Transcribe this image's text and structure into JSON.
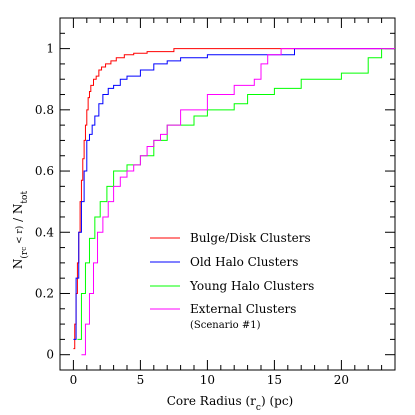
{
  "chart_data": {
    "type": "line",
    "xlabel": "Core Radius (r",
    "xlabel_sub": "c",
    "xlabel_tail": ") (pc)",
    "ylabel_main": "N",
    "ylabel_sub": "(r",
    "ylabel_subsub": "c",
    "ylabel_sub_tail": " < r)",
    "ylabel_tail": " / N",
    "ylabel_sub2": "tot",
    "xlim": [
      -1,
      24
    ],
    "ylim": [
      -0.05,
      1.1
    ],
    "xticks": [
      0,
      5,
      10,
      15,
      20
    ],
    "yticks": [
      0,
      0.2,
      0.4,
      0.6,
      0.8,
      1
    ],
    "ytick_labels": [
      "0",
      "0.2",
      "0.4",
      "0.6",
      "0.8",
      "1"
    ],
    "grid": false,
    "legend_position": "lower-right",
    "series": [
      {
        "name": "Bulge/Disk Clusters",
        "color": "#ff0000",
        "x": [
          0.0,
          0.1,
          0.2,
          0.3,
          0.4,
          0.5,
          0.6,
          0.7,
          0.8,
          0.9,
          1.0,
          1.1,
          1.2,
          1.3,
          1.5,
          1.7,
          1.9,
          2.1,
          2.4,
          2.8,
          3.2,
          3.8,
          4.5,
          5.5,
          7.5,
          14.5
        ],
        "y": [
          0.02,
          0.1,
          0.2,
          0.3,
          0.4,
          0.5,
          0.57,
          0.64,
          0.7,
          0.75,
          0.8,
          0.84,
          0.86,
          0.88,
          0.9,
          0.91,
          0.93,
          0.94,
          0.95,
          0.96,
          0.97,
          0.98,
          0.985,
          0.99,
          1.0,
          1.0
        ]
      },
      {
        "name": "Old Halo Clusters",
        "color": "#0000ff",
        "x": [
          0.0,
          0.2,
          0.4,
          0.6,
          0.8,
          1.0,
          1.2,
          1.4,
          1.6,
          1.9,
          2.2,
          2.6,
          3.0,
          3.5,
          4.0,
          5.0,
          6.0,
          7.0,
          8.0,
          10.0,
          16.5
        ],
        "y": [
          0.05,
          0.25,
          0.4,
          0.5,
          0.6,
          0.7,
          0.72,
          0.75,
          0.78,
          0.82,
          0.85,
          0.87,
          0.88,
          0.9,
          0.91,
          0.93,
          0.95,
          0.96,
          0.97,
          0.98,
          1.0
        ]
      },
      {
        "name": "Young Halo Clusters",
        "color": "#00ff00",
        "x": [
          0.3,
          0.6,
          0.9,
          1.2,
          1.6,
          2.0,
          2.5,
          3.0,
          4.0,
          5.0,
          6.0,
          7.0,
          9.0,
          10.0,
          12.0,
          13.0,
          15.0,
          17.0,
          20.0,
          22.0,
          23.0
        ],
        "y": [
          0.05,
          0.2,
          0.3,
          0.38,
          0.45,
          0.5,
          0.55,
          0.6,
          0.62,
          0.65,
          0.7,
          0.75,
          0.78,
          0.8,
          0.82,
          0.85,
          0.87,
          0.9,
          0.92,
          0.97,
          1.0
        ]
      },
      {
        "name": "External Clusters",
        "note": "(Scenario #1)",
        "color": "#ff00ff",
        "x": [
          0.6,
          0.9,
          1.2,
          1.5,
          1.8,
          2.2,
          2.6,
          3.0,
          3.5,
          4.0,
          4.5,
          5.0,
          5.5,
          6.0,
          6.5,
          7.0,
          8.0,
          10.0,
          12.0,
          13.5,
          14.0,
          14.5,
          15.5
        ],
        "y": [
          0.0,
          0.1,
          0.2,
          0.3,
          0.4,
          0.45,
          0.5,
          0.55,
          0.58,
          0.6,
          0.62,
          0.65,
          0.68,
          0.7,
          0.72,
          0.75,
          0.8,
          0.85,
          0.88,
          0.9,
          0.95,
          0.98,
          1.0
        ]
      }
    ]
  }
}
